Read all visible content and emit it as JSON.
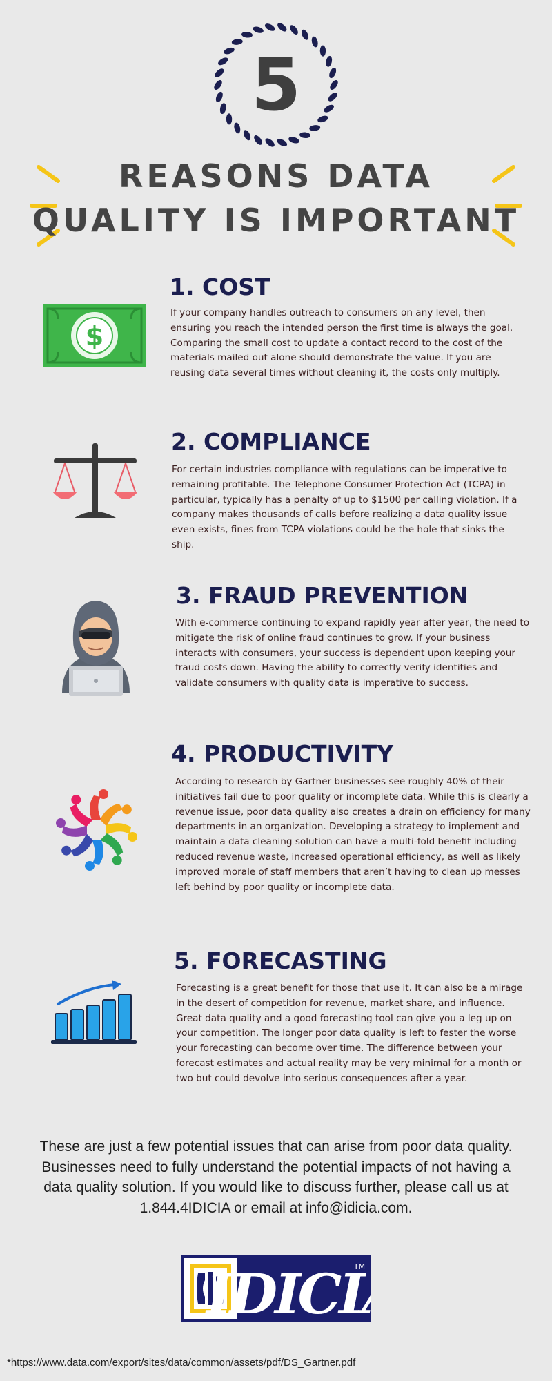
{
  "header": {
    "badge_number": "5",
    "title_line_1": "REASONS DATA",
    "title_line_2": "QUALITY IS IMPORTANT",
    "accent_color": "#f5c518",
    "badge_color": "#1b1e4f"
  },
  "sections": [
    {
      "heading": "1. COST",
      "icon": "money-icon",
      "body": "If your company handles outreach to consumers on any level, then ensuring you reach the intended person the first time is always the goal. Comparing the small cost to update a contact record to the cost of the materials mailed out alone should demonstrate the value. If you are reusing data several times without cleaning it, the costs only multiply."
    },
    {
      "heading": "2. COMPLIANCE",
      "icon": "scales-icon",
      "body": "For certain industries compliance with regulations can be imperative to remaining profitable. The Telephone Consumer Protection Act (TCPA) in particular, typically has a penalty of up to $1500 per calling violation. If a company makes thousands of calls before realizing a data quality issue even exists, fines from TCPA violations could be the hole that sinks the ship."
    },
    {
      "heading": "3. FRAUD PREVENTION",
      "icon": "hacker-icon",
      "body": "With e-commerce continuing to expand rapidly year after year, the need to mitigate the risk of online fraud continues to grow. If your business interacts with consumers, your success is dependent upon keeping your fraud costs down. Having the ability to correctly verify identities and validate consumers with quality data is imperative to success."
    },
    {
      "heading": "4. PRODUCTIVITY",
      "icon": "team-circle-icon",
      "body": "According to research by Gartner businesses see roughly 40% of their initiatives fail due to poor quality or incomplete data. While this is clearly a revenue issue, poor data quality also creates a drain on efficiency for many departments in an organization. Developing a strategy to implement and maintain a data cleaning solution can have a multi-fold benefit including reduced revenue waste, increased operational efficiency, as well as likely improved morale of staff members that aren’t having to clean up messes left behind by poor quality or incomplete data."
    },
    {
      "heading": "5. FORECASTING",
      "icon": "growth-chart-icon",
      "body": "Forecasting is a great benefit for those that use it. It can also be a mirage in the desert of competition for revenue, market share, and influence. Great data quality and a good forecasting tool can give you a leg up on your competition. The longer poor data quality is left to fester the worse your forecasting can become over time. The difference between your forecast estimates and actual reality may be very minimal for a month or two but could devolve into serious consequences after a year."
    }
  ],
  "closing_text": "These are just a few potential issues that can arise from poor data quality. Businesses need to fully understand the potential impacts of not having a data quality solution. If you would like to discuss further, please call us at 1.844.4IDICIA or email at info@idicia.com.",
  "logo": {
    "text": "IDICIA",
    "trademark": "TM",
    "primary_color": "#1b1e6e",
    "accent_color": "#f5c518"
  },
  "footnote": "*https://www.data.com/export/sites/data/common/assets/pdf/DS_Gartner.pdf"
}
